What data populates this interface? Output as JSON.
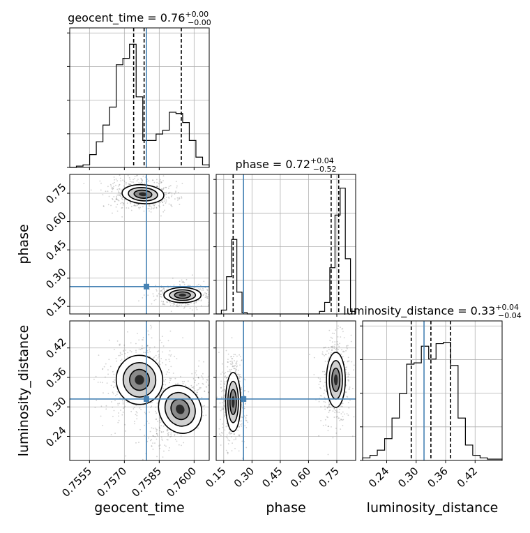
{
  "chart_data": {
    "type": "corner",
    "parameters": [
      "geocent_time",
      "phase",
      "luminosity_distance"
    ],
    "truths": {
      "geocent_time": 0.75795,
      "phase": 0.255,
      "luminosity_distance": 0.316
    },
    "colors": {
      "truth": "#4682b4",
      "hist": "#000000",
      "grid": "#b0b0b0"
    },
    "titles": [
      {
        "param": "geocent_time",
        "text": "geocent_time = 0.76",
        "sup": "+0.00",
        "sub": "−0.00"
      },
      {
        "param": "phase",
        "text": "phase = 0.72",
        "sup": "+0.04",
        "sub": "−0.52"
      },
      {
        "param": "luminosity_distance",
        "text": "luminosity_distance = 0.33",
        "sup": "+0.04",
        "sub": "−0.04"
      }
    ],
    "xlabels": [
      "geocent_time",
      "phase",
      "luminosity_distance"
    ],
    "ylabels": [
      "phase",
      "luminosity_distance"
    ],
    "axes": {
      "geocent_time": {
        "range": [
          0.75465,
          0.76065
        ],
        "ticks": [
          0.7555,
          0.757,
          0.7585,
          0.76
        ],
        "ticklabels": [
          "0.7555",
          "0.7570",
          "0.7585",
          "0.7600"
        ]
      },
      "phase": {
        "range": [
          0.11,
          0.85
        ],
        "ticks": [
          0.15,
          0.3,
          0.45,
          0.6,
          0.75
        ],
        "ticklabels": [
          "0.15",
          "0.30",
          "0.45",
          "0.60",
          "0.75"
        ]
      },
      "luminosity_distance": {
        "range": [
          0.191,
          0.475
        ],
        "ticks": [
          0.24,
          0.3,
          0.36,
          0.42
        ],
        "ticklabels": [
          "0.24",
          "0.30",
          "0.36",
          "0.42"
        ]
      }
    },
    "histograms": {
      "geocent_time": {
        "quantiles": [
          0.7574,
          0.75785,
          0.75945
        ],
        "counts": [
          0,
          0.01,
          0.02,
          0.1,
          0.2,
          0.33,
          0.47,
          0.8,
          0.85,
          0.96,
          0.55,
          0.21,
          0.21,
          0.26,
          0.29,
          0.43,
          0.42,
          0.35,
          0.21,
          0.08,
          0.02
        ]
      },
      "phase": {
        "quantiles": [
          0.2,
          0.72,
          0.76
        ],
        "counts": [
          0,
          0.03,
          0.29,
          0.58,
          0.17,
          0.01,
          0,
          0,
          0,
          0,
          0,
          0,
          0,
          0,
          0,
          0,
          0,
          0,
          0,
          0,
          0.02,
          0.09,
          0.36,
          0.77,
          0.98,
          0.43,
          0.02
        ]
      },
      "luminosity_distance": {
        "quantiles": [
          0.29,
          0.33,
          0.37
        ],
        "counts": [
          0.02,
          0.04,
          0.08,
          0.17,
          0.33,
          0.52,
          0.75,
          0.76,
          0.89,
          0.79,
          0.91,
          0.92,
          0.74,
          0.33,
          0.12,
          0.04,
          0.02,
          0.01,
          0.01
        ]
      }
    },
    "grid": true
  }
}
